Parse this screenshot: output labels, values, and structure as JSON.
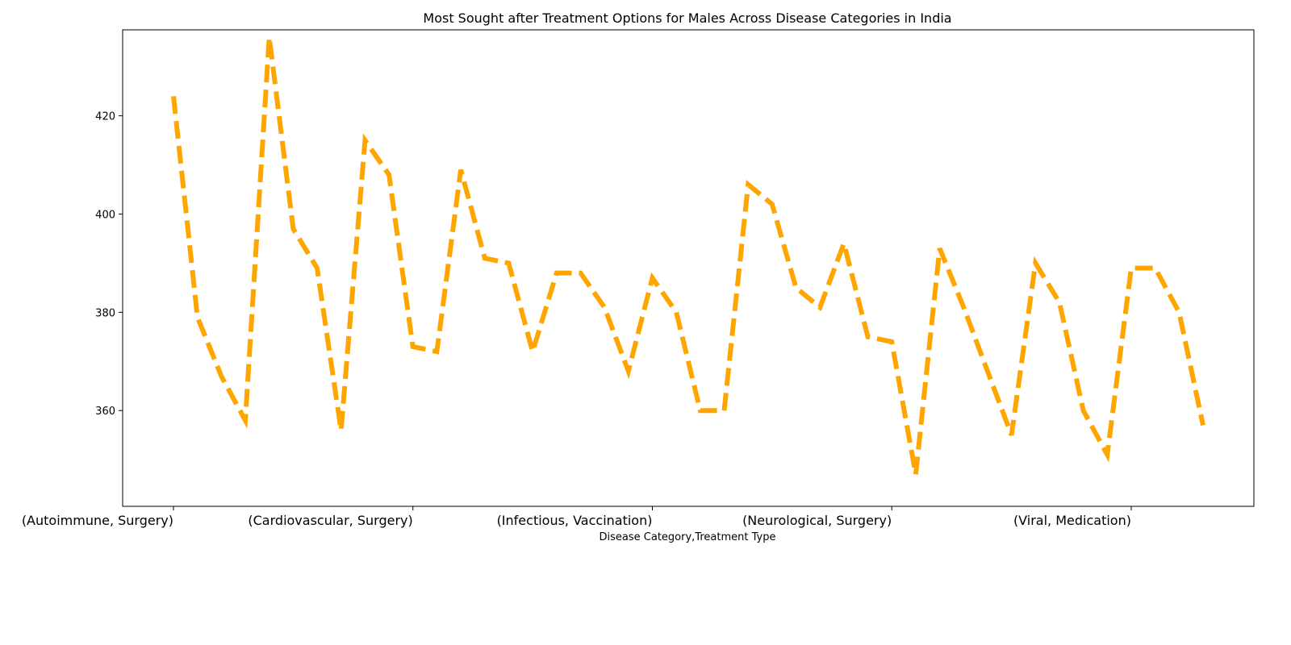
{
  "chart_data": {
    "type": "line",
    "title": "Most Sought after Treatment Options for Males Across Disease Categories in India",
    "xlabel": "Disease Category,Treatment Type",
    "ylabel": "",
    "ylim": [
      340.5,
      437.5
    ],
    "y_ticks": [
      360,
      380,
      400,
      420
    ],
    "x_tick_labels": [
      {
        "index": 0,
        "label": "(Autoimmune, Surgery)"
      },
      {
        "index": 10,
        "label": "(Cardiovascular, Surgery)"
      },
      {
        "index": 20,
        "label": "(Infectious, Vaccination)"
      },
      {
        "index": 30,
        "label": "(Neurological, Surgery)"
      },
      {
        "index": 40,
        "label": "(Viral, Medication)"
      }
    ],
    "grid": false,
    "legend": "none",
    "color": "#FFA500",
    "values": [
      424,
      379,
      367,
      358,
      436,
      397,
      389,
      356,
      415,
      408,
      373,
      372,
      409,
      391,
      390,
      372,
      388,
      388,
      381,
      368,
      387,
      380,
      360,
      360,
      406,
      402,
      385,
      381,
      394,
      375,
      374,
      347,
      393,
      381,
      368,
      355,
      390,
      382,
      360,
      351,
      389,
      389,
      380,
      357
    ]
  }
}
